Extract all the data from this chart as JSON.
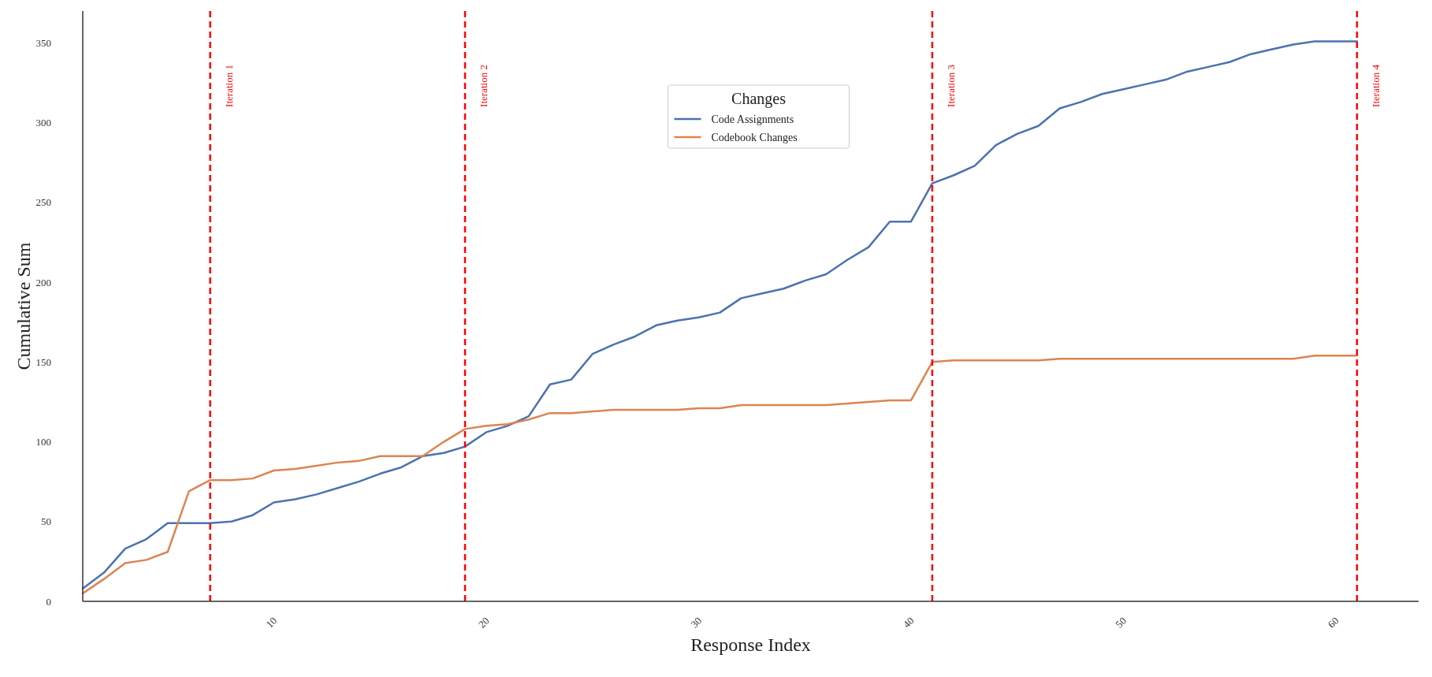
{
  "chart_data": {
    "type": "line",
    "xlabel": "Response Index",
    "ylabel": "Cumulative Sum",
    "legend_title": "Changes",
    "legend": "top",
    "grid": false,
    "line_style": "solid",
    "marker": "none",
    "x": [
      1,
      2,
      3,
      4,
      5,
      6,
      7,
      8,
      9,
      10,
      11,
      12,
      13,
      14,
      15,
      16,
      17,
      18,
      19,
      20,
      21,
      22,
      23,
      24,
      25,
      26,
      27,
      28,
      29,
      30,
      31,
      32,
      33,
      34,
      35,
      36,
      37,
      38,
      39,
      40,
      41,
      42,
      43,
      44,
      45,
      46,
      47,
      48,
      49,
      50,
      51,
      52,
      53,
      54,
      55,
      56,
      57,
      58,
      59,
      60,
      61
    ],
    "xlim": [
      1,
      63.9
    ],
    "xticks": [
      10,
      20,
      30,
      40,
      50,
      60
    ],
    "ylim": [
      0,
      370
    ],
    "yticks": [
      0,
      50,
      100,
      150,
      200,
      250,
      300,
      350
    ],
    "series": [
      {
        "name": "Code Assignments",
        "color": "#4c72b0",
        "values": [
          8,
          18,
          33,
          39,
          49,
          49,
          49,
          50,
          54,
          62,
          64,
          67,
          71,
          75,
          80,
          84,
          91,
          93,
          97,
          106,
          110,
          116,
          136,
          139,
          155,
          161,
          166,
          173,
          176,
          178,
          181,
          190,
          193,
          196,
          201,
          205,
          214,
          222,
          238,
          238,
          262,
          267,
          273,
          286,
          293,
          298,
          309,
          313,
          318,
          321,
          324,
          327,
          332,
          335,
          338,
          343,
          346,
          349,
          351,
          351,
          351
        ]
      },
      {
        "name": "Codebook Changes",
        "color": "#dd8452",
        "values": [
          5,
          14,
          24,
          26,
          31,
          69,
          76,
          76,
          77,
          82,
          83,
          85,
          87,
          88,
          91,
          91,
          91,
          100,
          108,
          110,
          111,
          114,
          118,
          118,
          119,
          120,
          120,
          120,
          120,
          121,
          121,
          123,
          123,
          123,
          123,
          123,
          124,
          125,
          126,
          126,
          150,
          151,
          151,
          151,
          151,
          151,
          152,
          152,
          152,
          152,
          152,
          152,
          152,
          152,
          152,
          152,
          152,
          152,
          154,
          154,
          154
        ]
      }
    ],
    "ref_lines": [
      {
        "axis": "x",
        "value": 7,
        "label": "Iteration 1",
        "color": "#ff0000",
        "line_style": "dashed"
      },
      {
        "axis": "x",
        "value": 19,
        "label": "Iteration 2",
        "color": "#ff0000",
        "line_style": "dashed"
      },
      {
        "axis": "x",
        "value": 41,
        "label": "Iteration 3",
        "color": "#ff0000",
        "line_style": "dashed"
      },
      {
        "axis": "x",
        "value": 61,
        "label": "Iteration 4",
        "color": "#ff0000",
        "line_style": "dashed"
      }
    ]
  }
}
